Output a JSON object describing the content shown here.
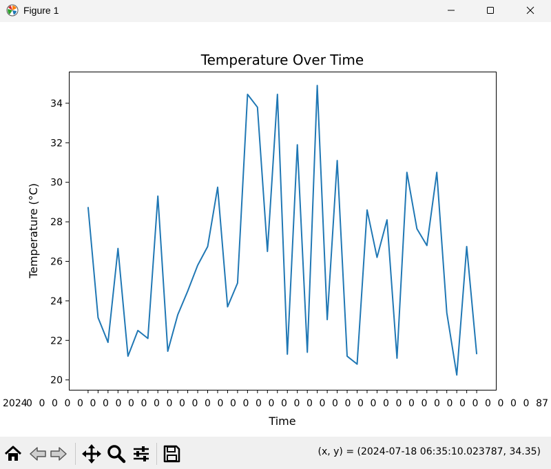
{
  "window": {
    "title": "Figure 1",
    "icons": [
      "matplotlib-logo-icon",
      "minimize-icon",
      "maximize-icon",
      "close-icon"
    ]
  },
  "toolbar": {
    "buttons": [
      "home-icon",
      "back-icon",
      "forward-icon",
      "pan-icon",
      "zoom-icon",
      "configure-subplots-icon",
      "save-icon"
    ],
    "coordinate_readout": "(x, y) = (2024-07-18 06:35:10.023787, 34.35)"
  },
  "chart_data": {
    "type": "line",
    "title": "Temperature Over Time",
    "xlabel": "Time",
    "ylabel": "Temperature (°C)",
    "x_tick_label_start": "2024",
    "x_tick_label_end": "87",
    "yticks": [
      20,
      22,
      24,
      26,
      28,
      30,
      32,
      34
    ],
    "ylim": [
      19.5,
      35.6
    ],
    "grid": false,
    "legend": "none",
    "line_color": "#1f77b4",
    "series": [
      {
        "values": [
          28.75,
          23.15,
          21.9,
          26.65,
          21.2,
          22.5,
          22.1,
          29.3,
          21.45,
          23.3,
          24.5,
          25.8,
          26.75,
          29.75,
          23.7,
          24.9,
          34.45,
          33.8,
          26.5,
          34.45,
          21.3,
          31.9,
          21.4,
          34.9,
          23.05,
          31.1,
          21.2,
          20.8,
          28.6,
          26.2,
          28.1,
          21.1,
          30.5,
          27.65,
          26.8,
          30.5,
          23.4,
          20.25,
          26.75,
          21.3
        ]
      }
    ]
  }
}
